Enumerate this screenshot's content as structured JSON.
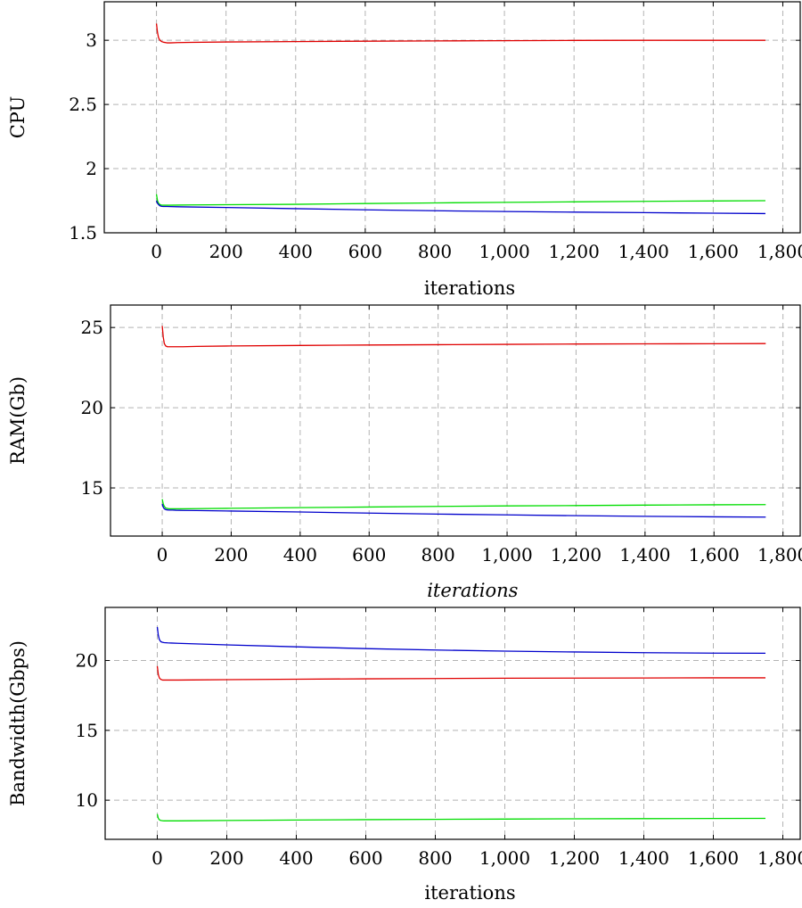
{
  "chart_data": [
    {
      "type": "line",
      "title": "",
      "xlabel": "iterations",
      "xlabel_italic": false,
      "ylabel": "CPU",
      "xlim": [
        -150,
        1850
      ],
      "ylim": [
        1.5,
        3.3
      ],
      "xticks": [
        0,
        200,
        400,
        600,
        800,
        1000,
        1200,
        1400,
        1600,
        1800
      ],
      "xtick_labels": [
        "0",
        "200",
        "400",
        "600",
        "800",
        "1,000",
        "1,200",
        "1,400",
        "1,600",
        "1,800"
      ],
      "yticks": [
        1.5,
        2,
        2.5,
        3
      ],
      "ytick_labels": [
        "1.5",
        "2",
        "2.5",
        "3"
      ],
      "grid": true,
      "series": [
        {
          "color": "#e00000",
          "x": [
            0,
            3,
            6,
            10,
            15,
            20,
            30,
            40,
            60,
            100,
            200,
            400,
            600,
            800,
            1000,
            1200,
            1400,
            1600,
            1750
          ],
          "y": [
            3.13,
            3.06,
            3.02,
            3.0,
            2.99,
            2.985,
            2.98,
            2.98,
            2.982,
            2.984,
            2.987,
            2.99,
            2.993,
            2.995,
            2.997,
            2.999,
            3.0,
            3.0,
            3.0
          ]
        },
        {
          "color": "#00dd00",
          "x": [
            0,
            3,
            6,
            10,
            15,
            20,
            30,
            40,
            60,
            100,
            200,
            400,
            600,
            800,
            1000,
            1200,
            1400,
            1600,
            1750
          ],
          "y": [
            1.8,
            1.75,
            1.73,
            1.72,
            1.715,
            1.715,
            1.715,
            1.715,
            1.716,
            1.717,
            1.719,
            1.722,
            1.728,
            1.733,
            1.737,
            1.741,
            1.745,
            1.748,
            1.75
          ]
        },
        {
          "color": "#0000cc",
          "x": [
            0,
            3,
            6,
            10,
            15,
            20,
            30,
            40,
            60,
            100,
            200,
            400,
            600,
            800,
            1000,
            1200,
            1400,
            1600,
            1750
          ],
          "y": [
            1.75,
            1.73,
            1.72,
            1.71,
            1.706,
            1.705,
            1.705,
            1.704,
            1.703,
            1.701,
            1.697,
            1.688,
            1.679,
            1.672,
            1.666,
            1.661,
            1.657,
            1.653,
            1.65
          ]
        }
      ]
    },
    {
      "type": "line",
      "title": "",
      "xlabel": "iterations",
      "xlabel_italic": true,
      "ylabel": "RAM(Gb)",
      "xlim": [
        -150,
        1850
      ],
      "ylim": [
        12.0,
        26.4
      ],
      "xticks": [
        0,
        200,
        400,
        600,
        800,
        1000,
        1200,
        1400,
        1600,
        1800
      ],
      "xtick_labels": [
        "0",
        "200",
        "400",
        "600",
        "800",
        "1,000",
        "1,200",
        "1,400",
        "1,600",
        "1,800"
      ],
      "yticks": [
        15,
        20,
        25
      ],
      "ytick_labels": [
        "15",
        "20",
        "25"
      ],
      "grid": true,
      "series": [
        {
          "color": "#e00000",
          "x": [
            0,
            3,
            6,
            10,
            15,
            20,
            30,
            40,
            60,
            100,
            200,
            400,
            600,
            800,
            1000,
            1200,
            1400,
            1600,
            1750
          ],
          "y": [
            25.1,
            24.4,
            24.0,
            23.85,
            23.8,
            23.8,
            23.8,
            23.8,
            23.8,
            23.82,
            23.85,
            23.88,
            23.91,
            23.93,
            23.95,
            23.97,
            23.98,
            23.99,
            24.0
          ]
        },
        {
          "color": "#00dd00",
          "x": [
            0,
            3,
            6,
            10,
            15,
            20,
            30,
            40,
            60,
            100,
            200,
            400,
            600,
            800,
            1000,
            1200,
            1400,
            1600,
            1750
          ],
          "y": [
            14.3,
            14.0,
            13.85,
            13.75,
            13.72,
            13.7,
            13.7,
            13.7,
            13.7,
            13.71,
            13.73,
            13.77,
            13.81,
            13.85,
            13.88,
            13.9,
            13.93,
            13.95,
            13.96
          ]
        },
        {
          "color": "#0000cc",
          "x": [
            0,
            3,
            6,
            10,
            15,
            20,
            30,
            40,
            60,
            100,
            200,
            400,
            600,
            800,
            1000,
            1200,
            1400,
            1600,
            1750
          ],
          "y": [
            14.0,
            13.8,
            13.7,
            13.65,
            13.63,
            13.62,
            13.62,
            13.61,
            13.6,
            13.59,
            13.56,
            13.5,
            13.43,
            13.37,
            13.32,
            13.27,
            13.23,
            13.2,
            13.18
          ]
        }
      ]
    },
    {
      "type": "line",
      "title": "",
      "xlabel": "iterations",
      "xlabel_italic": false,
      "ylabel": "Bandwidth(Gbps)",
      "xlim": [
        -150,
        1850
      ],
      "ylim": [
        7.2,
        23.8
      ],
      "xticks": [
        0,
        200,
        400,
        600,
        800,
        1000,
        1200,
        1400,
        1600,
        1800
      ],
      "xtick_labels": [
        "0",
        "200",
        "400",
        "600",
        "800",
        "1,000",
        "1,200",
        "1,400",
        "1,600",
        "1,800"
      ],
      "yticks": [
        10,
        15,
        20
      ],
      "ytick_labels": [
        "10",
        "15",
        "20"
      ],
      "grid": true,
      "series": [
        {
          "color": "#0000cc",
          "x": [
            0,
            3,
            6,
            10,
            15,
            20,
            30,
            40,
            60,
            100,
            200,
            400,
            600,
            800,
            1000,
            1200,
            1400,
            1600,
            1750
          ],
          "y": [
            22.4,
            21.8,
            21.5,
            21.35,
            21.3,
            21.28,
            21.26,
            21.25,
            21.23,
            21.2,
            21.12,
            20.98,
            20.85,
            20.75,
            20.67,
            20.61,
            20.56,
            20.53,
            20.52
          ]
        },
        {
          "color": "#e00000",
          "x": [
            0,
            3,
            6,
            10,
            15,
            20,
            30,
            40,
            60,
            100,
            200,
            400,
            600,
            800,
            1000,
            1200,
            1400,
            1600,
            1750
          ],
          "y": [
            19.6,
            19.0,
            18.75,
            18.65,
            18.6,
            18.6,
            18.6,
            18.6,
            18.6,
            18.61,
            18.63,
            18.66,
            18.69,
            18.71,
            18.73,
            18.74,
            18.75,
            18.76,
            18.76
          ]
        },
        {
          "color": "#00dd00",
          "x": [
            0,
            3,
            6,
            10,
            15,
            20,
            30,
            40,
            60,
            100,
            200,
            400,
            600,
            800,
            1000,
            1200,
            1400,
            1600,
            1750
          ],
          "y": [
            9.0,
            8.7,
            8.6,
            8.55,
            8.53,
            8.52,
            8.52,
            8.52,
            8.52,
            8.53,
            8.55,
            8.58,
            8.61,
            8.63,
            8.65,
            8.67,
            8.68,
            8.69,
            8.7
          ]
        }
      ]
    }
  ]
}
